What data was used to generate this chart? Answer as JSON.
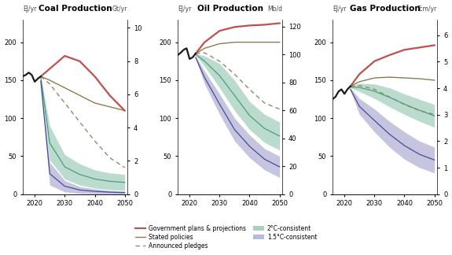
{
  "coal": {
    "title": "Coal Production",
    "ylabel_left": "EJ/yr",
    "ylabel_right": "Gt/yr",
    "ylim_left": [
      0,
      230
    ],
    "ylim_right": [
      0,
      10.5
    ],
    "yticks_left": [
      0,
      50,
      100,
      150,
      200
    ],
    "yticks_right": [
      0,
      2,
      4,
      6,
      8,
      10
    ],
    "years": [
      2016,
      2017,
      2018,
      2019,
      2020,
      2021,
      2022,
      2025,
      2030,
      2035,
      2040,
      2045,
      2050
    ],
    "historical": [
      155,
      157,
      160,
      157,
      148,
      152,
      155,
      null,
      null,
      null,
      null,
      null,
      null
    ],
    "gov_plans": [
      null,
      null,
      null,
      null,
      null,
      null,
      155,
      165,
      182,
      175,
      155,
      130,
      110
    ],
    "stated_policies": [
      null,
      null,
      null,
      null,
      null,
      null,
      155,
      150,
      140,
      130,
      120,
      115,
      110
    ],
    "announced_pledges": [
      null,
      null,
      null,
      null,
      null,
      null,
      155,
      145,
      120,
      95,
      70,
      48,
      35
    ],
    "c2_upper": [
      null,
      null,
      null,
      null,
      null,
      null,
      155,
      90,
      52,
      40,
      32,
      28,
      26
    ],
    "c2_lower": [
      null,
      null,
      null,
      null,
      null,
      null,
      153,
      45,
      20,
      12,
      8,
      6,
      5
    ],
    "c15_upper": [
      null,
      null,
      null,
      null,
      null,
      null,
      150,
      42,
      18,
      10,
      7,
      5,
      4
    ],
    "c15_lower": [
      null,
      null,
      null,
      null,
      null,
      null,
      148,
      12,
      3,
      1,
      0.5,
      0.3,
      0.2
    ]
  },
  "oil": {
    "title": "Oil Production",
    "ylabel_left": "EJ/yr",
    "ylabel_right": "Mb/d",
    "ylim_left": [
      0,
      230
    ],
    "ylim_right": [
      0,
      125
    ],
    "yticks_left": [
      0,
      50,
      100,
      150,
      200
    ],
    "yticks_right": [
      0,
      20,
      40,
      60,
      80,
      100,
      120
    ],
    "years": [
      2016,
      2017,
      2018,
      2019,
      2020,
      2021,
      2022,
      2025,
      2030,
      2035,
      2040,
      2045,
      2050
    ],
    "historical": [
      183,
      186,
      190,
      192,
      178,
      180,
      185,
      null,
      null,
      null,
      null,
      null,
      null
    ],
    "gov_plans": [
      null,
      null,
      null,
      null,
      null,
      null,
      185,
      200,
      215,
      220,
      222,
      223,
      225
    ],
    "stated_policies": [
      null,
      null,
      null,
      null,
      null,
      null,
      185,
      192,
      198,
      200,
      200,
      200,
      200
    ],
    "announced_pledges": [
      null,
      null,
      null,
      null,
      null,
      null,
      185,
      186,
      175,
      158,
      138,
      120,
      112
    ],
    "c2_upper": [
      null,
      null,
      null,
      null,
      null,
      null,
      185,
      182,
      172,
      150,
      122,
      105,
      95
    ],
    "c2_lower": [
      null,
      null,
      null,
      null,
      null,
      null,
      183,
      168,
      140,
      110,
      85,
      68,
      58
    ],
    "c15_upper": [
      null,
      null,
      null,
      null,
      null,
      null,
      182,
      162,
      132,
      100,
      78,
      60,
      50
    ],
    "c15_lower": [
      null,
      null,
      null,
      null,
      null,
      null,
      178,
      145,
      105,
      70,
      48,
      32,
      22
    ]
  },
  "gas": {
    "title": "Gas Production",
    "ylabel_left": "EJ/yr",
    "ylabel_right": "Tcm/yr",
    "ylim_left": [
      0,
      230
    ],
    "ylim_right": [
      0,
      6.6
    ],
    "yticks_left": [
      0,
      50,
      100,
      150,
      200
    ],
    "yticks_right": [
      0,
      1,
      2,
      3,
      4,
      5,
      6
    ],
    "years": [
      2016,
      2017,
      2018,
      2019,
      2020,
      2021,
      2022,
      2025,
      2030,
      2035,
      2040,
      2045,
      2050
    ],
    "historical": [
      125,
      128,
      135,
      138,
      132,
      138,
      142,
      null,
      null,
      null,
      null,
      null,
      null
    ],
    "gov_plans": [
      null,
      null,
      null,
      null,
      null,
      null,
      142,
      158,
      175,
      183,
      190,
      193,
      196
    ],
    "stated_policies": [
      null,
      null,
      null,
      null,
      null,
      null,
      142,
      148,
      153,
      154,
      153,
      152,
      150
    ],
    "announced_pledges": [
      null,
      null,
      null,
      null,
      null,
      null,
      142,
      143,
      138,
      128,
      118,
      110,
      105
    ],
    "c2_upper": [
      null,
      null,
      null,
      null,
      null,
      null,
      142,
      146,
      145,
      140,
      132,
      125,
      118
    ],
    "c2_lower": [
      null,
      null,
      null,
      null,
      null,
      null,
      140,
      135,
      126,
      115,
      105,
      96,
      88
    ],
    "c15_upper": [
      null,
      null,
      null,
      null,
      null,
      null,
      140,
      126,
      112,
      96,
      82,
      70,
      62
    ],
    "c15_lower": [
      null,
      null,
      null,
      null,
      null,
      null,
      136,
      105,
      82,
      62,
      46,
      35,
      28
    ]
  },
  "colors": {
    "gov_plans": "#c0504d",
    "stated_policies": "#8c7b4e",
    "announced_pledges": "#8c8c6e",
    "c2_fill": "#7ab8a0",
    "c2_line": "#4a9e78",
    "c15_fill": "#8080b8",
    "c15_line": "#4a4a99",
    "historical": "#1a1a1a"
  },
  "legend": {
    "gov_plans_label": "Government plans & projections",
    "stated_label": "Stated policies",
    "pledges_label": "Announced pledges",
    "c2_label": "2°C-consistent",
    "c15_label": "1.5°C-consistent"
  }
}
